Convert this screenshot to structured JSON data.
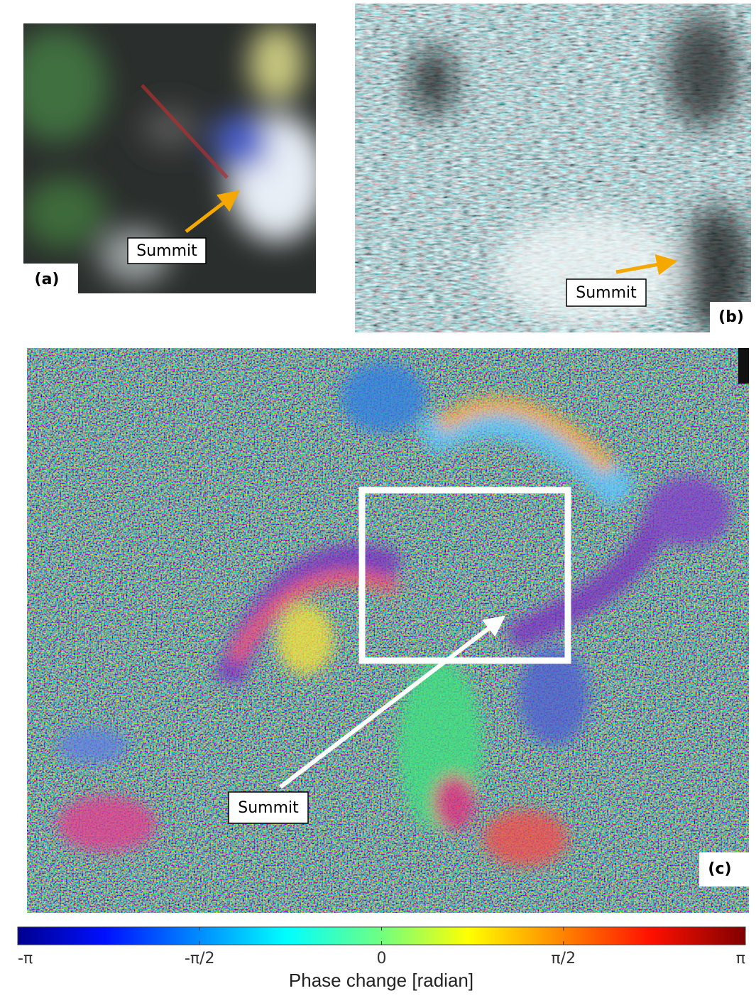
{
  "panels": {
    "a": {
      "tag": "(a)",
      "annotation": "Summit"
    },
    "b": {
      "tag": "(b)",
      "annotation": "Summit"
    },
    "c": {
      "tag": "(c)",
      "annotation": "Summit"
    }
  },
  "colorbar": {
    "label": "Phase change [radian]",
    "lim": [
      -3.14159,
      3.14159
    ],
    "ticks": [
      {
        "value": -3.14159,
        "label": "-π"
      },
      {
        "value": -1.5708,
        "label": "-π/2"
      },
      {
        "value": 0,
        "label": "0"
      },
      {
        "value": 1.5708,
        "label": "π/2"
      },
      {
        "value": 3.14159,
        "label": "π"
      }
    ]
  }
}
